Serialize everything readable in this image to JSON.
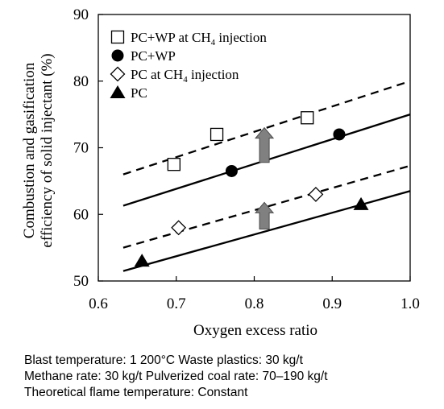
{
  "chart_data": {
    "type": "scatter",
    "xlabel": "Oxygen excess ratio",
    "ylabel_lines": [
      "Combustion and gasification",
      "efficiency of solid injectant (%)"
    ],
    "xlim": [
      0.6,
      1.0
    ],
    "ylim": [
      50,
      90
    ],
    "xticks": [
      "0.6",
      "0.7",
      "0.8",
      "0.9",
      "1.0"
    ],
    "yticks": [
      "50",
      "60",
      "70",
      "80",
      "90"
    ],
    "grid": false,
    "legend_position": "top-left",
    "series": [
      {
        "name": "PC+WP at CH4 injection",
        "name_main": "PC+WP at CH",
        "name_sub": "4",
        "name_tail": " injection",
        "marker": "open-square",
        "x": [
          0.697,
          0.752,
          0.868
        ],
        "y": [
          67.5,
          72.0,
          74.5
        ]
      },
      {
        "name": "PC+WP",
        "name_main": "PC+WP",
        "name_sub": "",
        "name_tail": "",
        "marker": "filled-circle",
        "x": [
          0.771,
          0.909
        ],
        "y": [
          66.5,
          72.0
        ]
      },
      {
        "name": "PC at CH4 injection",
        "name_main": "PC at CH",
        "name_sub": "4",
        "name_tail": " injection",
        "marker": "open-diamond",
        "x": [
          0.703,
          0.879
        ],
        "y": [
          58.0,
          63.0
        ]
      },
      {
        "name": "PC",
        "name_main": "PC",
        "name_sub": "",
        "name_tail": "",
        "marker": "filled-triangle",
        "x": [
          0.656,
          0.937
        ],
        "y": [
          53.0,
          61.5
        ]
      }
    ],
    "fit_lines": [
      {
        "style": "dashed",
        "x": [
          0.632,
          1.0
        ],
        "y": [
          66.0,
          80.0
        ]
      },
      {
        "style": "solid",
        "x": [
          0.632,
          1.0
        ],
        "y": [
          61.3,
          75.0
        ]
      },
      {
        "style": "dashed",
        "x": [
          0.632,
          1.0
        ],
        "y": [
          55.0,
          67.3
        ]
      },
      {
        "style": "solid",
        "x": [
          0.632,
          1.0
        ],
        "y": [
          51.5,
          63.5
        ]
      }
    ],
    "arrows": [
      {
        "x": 0.813,
        "y_from": 67.8,
        "y_to": 73.0,
        "color": "#808080"
      },
      {
        "x": 0.813,
        "y_from": 57.8,
        "y_to": 61.8,
        "color": "#808080"
      }
    ]
  },
  "notes": [
    "Blast temperature: 1 200°C   Waste plastics: 30 kg/t",
    "Methane rate: 30 kg/t   Pulverized coal rate: 70–190 kg/t",
    "Theoretical flame temperature: Constant"
  ]
}
